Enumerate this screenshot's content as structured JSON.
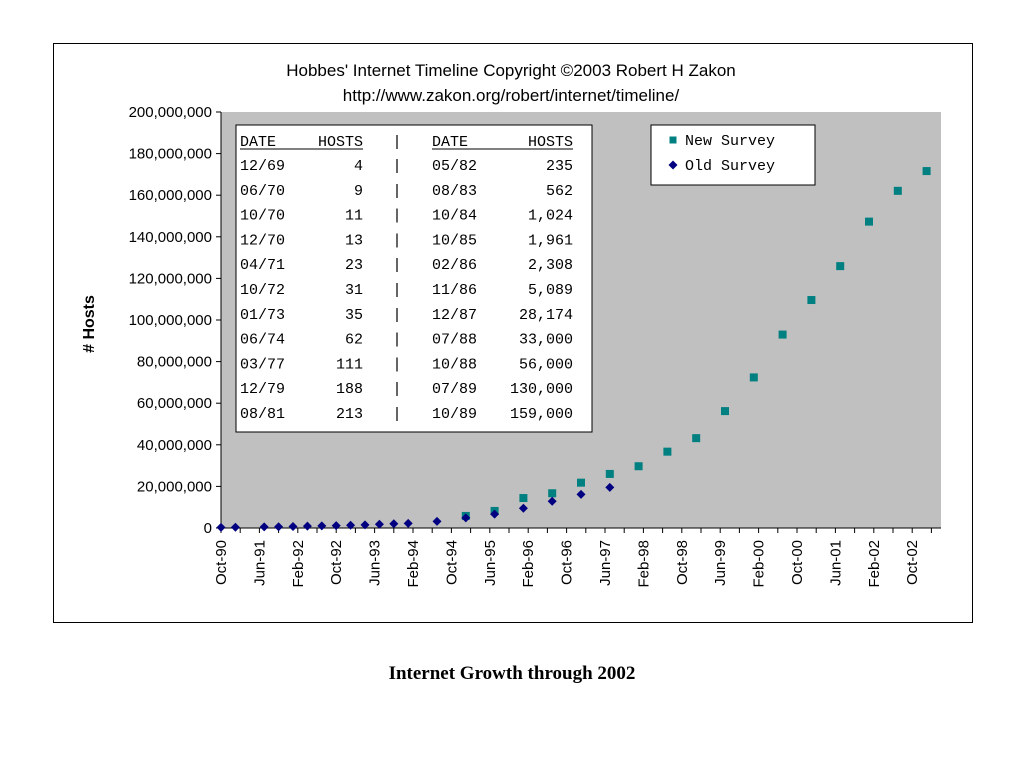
{
  "caption": "Internet Growth through 2002",
  "chart_data": {
    "type": "scatter",
    "title": "Hobbes' Internet Timeline Copyright ©2003 Robert H Zakon",
    "subtitle": "http://www.zakon.org/robert/internet/timeline/",
    "xlabel": "",
    "ylabel": "# Hosts",
    "ylim": [
      0,
      200000000
    ],
    "y_ticks": [
      "0",
      "20,000,000",
      "40,000,000",
      "60,000,000",
      "80,000,000",
      "100,000,000",
      "120,000,000",
      "140,000,000",
      "160,000,000",
      "180,000,000",
      "200,000,000"
    ],
    "x_ticks": [
      {
        "label": "Oct-90",
        "date": "1990-10"
      },
      {
        "label": "Jun-91",
        "date": "1991-06"
      },
      {
        "label": "Feb-92",
        "date": "1992-02"
      },
      {
        "label": "Oct-92",
        "date": "1992-10"
      },
      {
        "label": "Jun-93",
        "date": "1993-06"
      },
      {
        "label": "Feb-94",
        "date": "1994-02"
      },
      {
        "label": "Oct-94",
        "date": "1994-10"
      },
      {
        "label": "Jun-95",
        "date": "1995-06"
      },
      {
        "label": "Feb-96",
        "date": "1996-02"
      },
      {
        "label": "Oct-96",
        "date": "1996-10"
      },
      {
        "label": "Jun-97",
        "date": "1997-06"
      },
      {
        "label": "Feb-98",
        "date": "1998-02"
      },
      {
        "label": "Oct-98",
        "date": "1998-10"
      },
      {
        "label": "Jun-99",
        "date": "1999-06"
      },
      {
        "label": "Feb-00",
        "date": "2000-02"
      },
      {
        "label": "Oct-00",
        "date": "2000-10"
      },
      {
        "label": "Jun-01",
        "date": "2001-06"
      },
      {
        "label": "Feb-02",
        "date": "2002-02"
      },
      {
        "label": "Oct-02",
        "date": "2002-10"
      }
    ],
    "grid": false,
    "legend_position": "top-right",
    "series": [
      {
        "name": "New Survey",
        "marker": "square",
        "color": "#008080",
        "points": [
          {
            "x": "1995-01",
            "y": 5800000
          },
          {
            "x": "1995-07",
            "y": 8200000
          },
          {
            "x": "1996-01",
            "y": 14400000
          },
          {
            "x": "1996-07",
            "y": 16700000
          },
          {
            "x": "1997-01",
            "y": 21800000
          },
          {
            "x": "1997-07",
            "y": 26000000
          },
          {
            "x": "1998-01",
            "y": 29700000
          },
          {
            "x": "1998-07",
            "y": 36700000
          },
          {
            "x": "1999-01",
            "y": 43200000
          },
          {
            "x": "1999-07",
            "y": 56200000
          },
          {
            "x": "2000-01",
            "y": 72400000
          },
          {
            "x": "2000-07",
            "y": 93000000
          },
          {
            "x": "2001-01",
            "y": 109600000
          },
          {
            "x": "2001-07",
            "y": 125900000
          },
          {
            "x": "2002-01",
            "y": 147300000
          },
          {
            "x": "2002-07",
            "y": 162100000
          },
          {
            "x": "2003-01",
            "y": 171600000
          }
        ]
      },
      {
        "name": "Old Survey",
        "marker": "diamond",
        "color": "#000080",
        "points": [
          {
            "x": "1990-10",
            "y": 313000
          },
          {
            "x": "1991-01",
            "y": 376000
          },
          {
            "x": "1991-07",
            "y": 535000
          },
          {
            "x": "1991-10",
            "y": 617000
          },
          {
            "x": "1992-01",
            "y": 727000
          },
          {
            "x": "1992-04",
            "y": 890000
          },
          {
            "x": "1992-07",
            "y": 992000
          },
          {
            "x": "1992-10",
            "y": 1136000
          },
          {
            "x": "1993-01",
            "y": 1313000
          },
          {
            "x": "1993-04",
            "y": 1486000
          },
          {
            "x": "1993-07",
            "y": 1776000
          },
          {
            "x": "1993-10",
            "y": 2056000
          },
          {
            "x": "1994-01",
            "y": 2217000
          },
          {
            "x": "1994-07",
            "y": 3212000
          },
          {
            "x": "1995-01",
            "y": 4852000
          },
          {
            "x": "1995-07",
            "y": 6642000
          },
          {
            "x": "1996-01",
            "y": 9472000
          },
          {
            "x": "1996-07",
            "y": 12881000
          },
          {
            "x": "1997-01",
            "y": 16146000
          },
          {
            "x": "1997-07",
            "y": 19540000
          }
        ]
      }
    ],
    "inset_table": {
      "headers": [
        "DATE",
        "HOSTS",
        "|",
        "DATE",
        "HOSTS"
      ],
      "rows": [
        [
          "12/69",
          "4",
          "|",
          "05/82",
          "235"
        ],
        [
          "06/70",
          "9",
          "|",
          "08/83",
          "562"
        ],
        [
          "10/70",
          "11",
          "|",
          "10/84",
          "1,024"
        ],
        [
          "12/70",
          "13",
          "|",
          "10/85",
          "1,961"
        ],
        [
          "04/71",
          "23",
          "|",
          "02/86",
          "2,308"
        ],
        [
          "10/72",
          "31",
          "|",
          "11/86",
          "5,089"
        ],
        [
          "01/73",
          "35",
          "|",
          "12/87",
          "28,174"
        ],
        [
          "06/74",
          "62",
          "|",
          "07/88",
          "33,000"
        ],
        [
          "03/77",
          "111",
          "|",
          "10/88",
          "56,000"
        ],
        [
          "12/79",
          "188",
          "|",
          "07/89",
          "130,000"
        ],
        [
          "08/81",
          "213",
          "|",
          "10/89",
          "159,000"
        ]
      ]
    }
  }
}
